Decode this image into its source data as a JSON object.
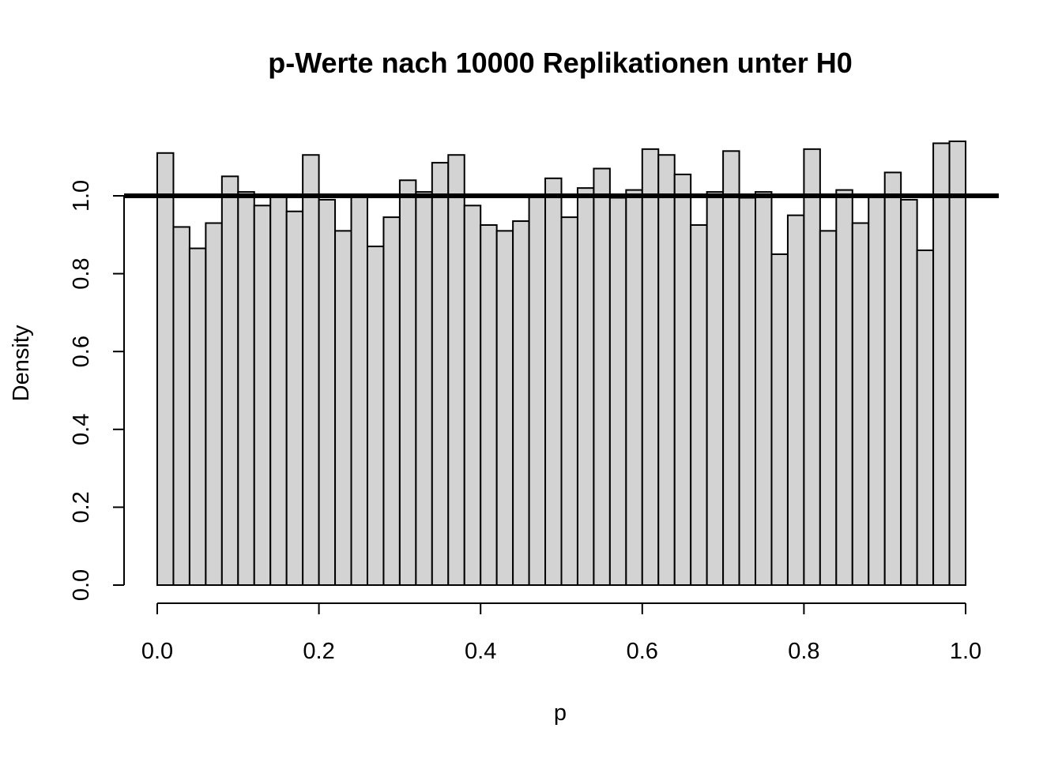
{
  "chart_data": {
    "type": "bar",
    "title": "p-Werte nach 10000 Replikationen unter H0",
    "xlabel": "p",
    "ylabel": "Density",
    "xlim": [
      0.0,
      1.0
    ],
    "ylim": [
      0.0,
      1.15
    ],
    "bin_width": 0.02,
    "x_ticks": [
      "0.0",
      "0.2",
      "0.4",
      "0.6",
      "0.8",
      "1.0"
    ],
    "y_ticks": [
      "0.0",
      "0.2",
      "0.4",
      "0.6",
      "0.8",
      "1.0"
    ],
    "values": [
      1.11,
      0.92,
      0.865,
      0.93,
      1.05,
      1.01,
      0.975,
      1.0,
      0.96,
      1.105,
      0.99,
      0.91,
      1.0,
      0.87,
      0.945,
      1.04,
      1.01,
      1.085,
      1.105,
      0.975,
      0.925,
      0.91,
      0.935,
      1.0,
      1.045,
      0.945,
      1.02,
      1.07,
      0.995,
      1.015,
      1.12,
      1.105,
      1.055,
      0.925,
      1.01,
      1.115,
      0.995,
      1.01,
      0.85,
      0.95,
      1.12,
      0.91,
      1.015,
      0.93,
      1.0,
      1.06,
      0.99,
      0.86,
      1.135,
      1.14
    ],
    "reference_line": 1.0,
    "colors": {
      "bar_fill": "#d3d3d3",
      "bar_stroke": "#000000",
      "line": "#000000"
    }
  }
}
